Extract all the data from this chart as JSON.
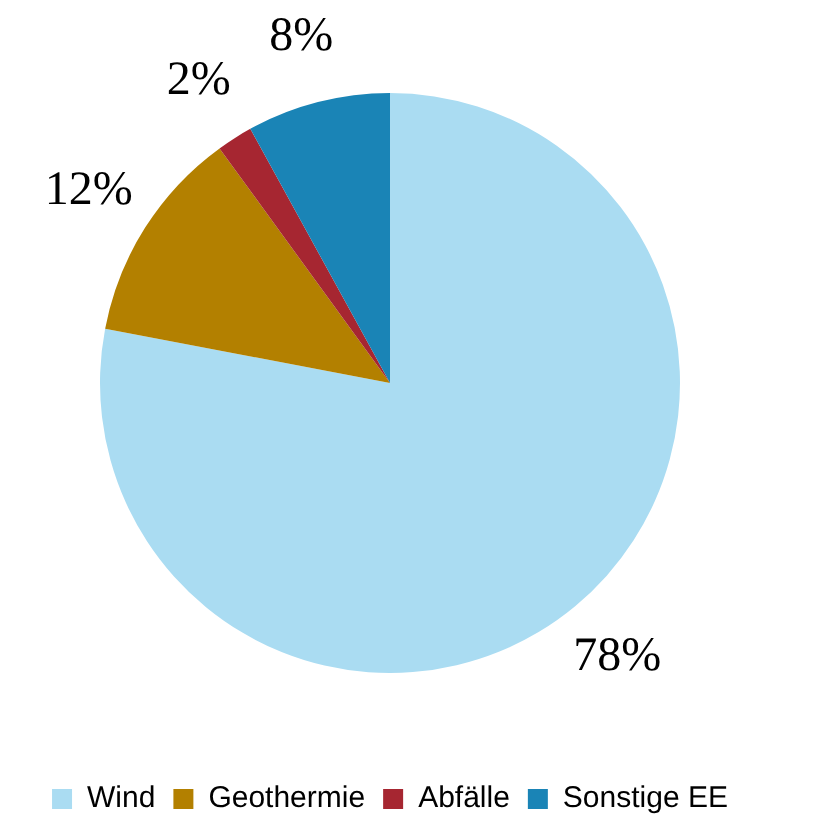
{
  "chart_data": {
    "type": "pie",
    "categories": [
      "Wind",
      "Geothermie",
      "Abfälle",
      "Sonstige EE"
    ],
    "values": [
      78,
      12,
      2,
      8
    ],
    "colors": [
      "#aadcf2",
      "#b38000",
      "#a62631",
      "#1a84b6"
    ],
    "value_labels": [
      "78%",
      "12%",
      "2%",
      "8%"
    ],
    "legend": "bottom"
  }
}
